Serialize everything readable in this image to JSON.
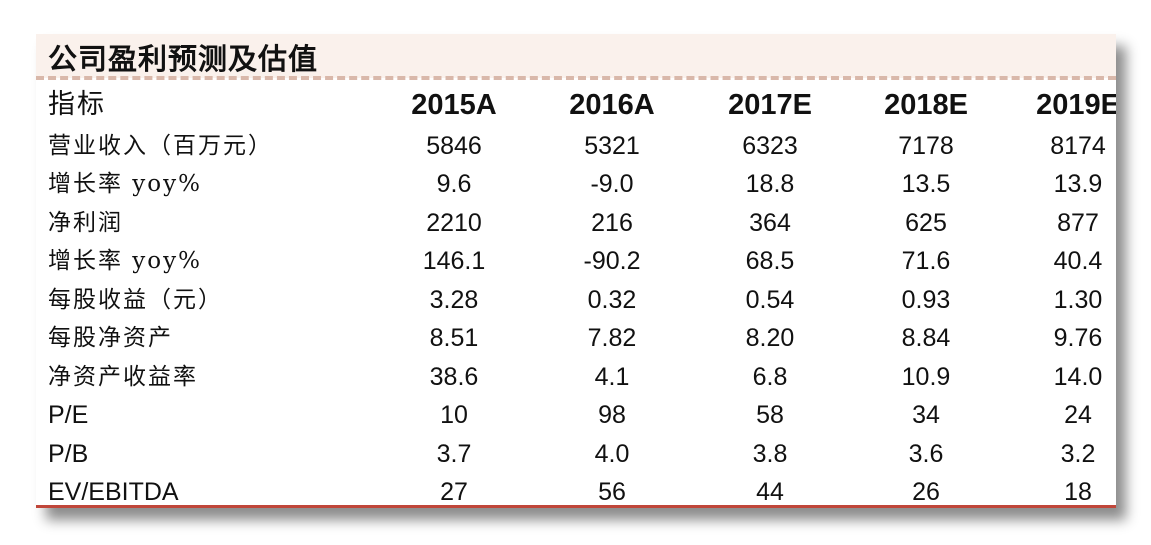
{
  "title": "公司盈利预测及估值",
  "table": {
    "header": {
      "label": "指标",
      "years": [
        "2015A",
        "2016A",
        "2017E",
        "2018E",
        "2019E"
      ]
    },
    "rows": [
      {
        "label": "营业收入（百万元）",
        "values": [
          "5846",
          "5321",
          "6323",
          "7178",
          "8174"
        ]
      },
      {
        "label": "增长率 yoy%",
        "values": [
          "9.6",
          "-9.0",
          "18.8",
          "13.5",
          "13.9"
        ]
      },
      {
        "label": "净利润",
        "values": [
          "2210",
          "216",
          "364",
          "625",
          "877"
        ]
      },
      {
        "label": "增长率 yoy%",
        "values": [
          "146.1",
          "-90.2",
          "68.5",
          "71.6",
          "40.4"
        ]
      },
      {
        "label": "每股收益（元）",
        "values": [
          "3.28",
          "0.32",
          "0.54",
          "0.93",
          "1.30"
        ]
      },
      {
        "label": "每股净资产",
        "values": [
          "8.51",
          "7.82",
          "8.20",
          "8.84",
          "9.76"
        ]
      },
      {
        "label": "净资产收益率",
        "values": [
          "38.6",
          "4.1",
          "6.8",
          "10.9",
          "14.0"
        ]
      },
      {
        "label": "P/E",
        "values": [
          "10",
          "98",
          "58",
          "34",
          "24"
        ]
      },
      {
        "label": "P/B",
        "values": [
          "3.7",
          "4.0",
          "3.8",
          "3.6",
          "3.2"
        ]
      },
      {
        "label": "EV/EBITDA",
        "values": [
          "27",
          "56",
          "44",
          "26",
          "18"
        ]
      }
    ]
  },
  "colors": {
    "title_background": "#faf1ec",
    "dash_line": "#d9b8aa",
    "bottom_rule": "#c0463a"
  }
}
